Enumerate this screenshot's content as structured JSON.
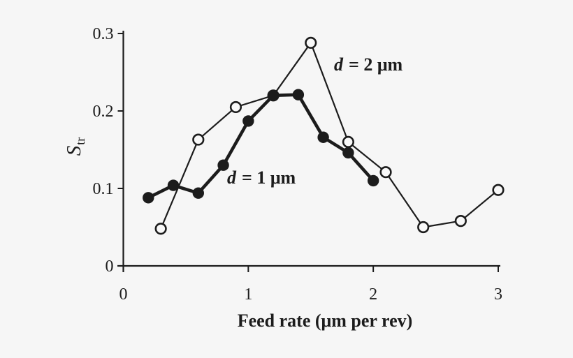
{
  "background_color": "#f6f6f6",
  "ink_color": "#1c1c1c",
  "open_marker_fill": "#f8f8f8",
  "chart_data": {
    "type": "line",
    "title": "",
    "xlabel": "Feed rate (μm per rev)",
    "ylabel": {
      "base": "S",
      "subscript": "tr"
    },
    "xlim": [
      0,
      3
    ],
    "ylim": [
      0,
      0.3
    ],
    "x_tick_values": [
      0,
      1,
      2,
      3
    ],
    "x_tick_labels": [
      "0",
      "1",
      "2",
      "3"
    ],
    "y_tick_values": [
      0,
      0.1,
      0.2,
      0.3
    ],
    "y_tick_labels": [
      "0",
      "0.1",
      "0.2",
      "0.3"
    ],
    "grid": false,
    "legend_position": "inline annotations beside curves",
    "series": [
      {
        "name": "d = 2 μm",
        "label": {
          "variable": "d",
          "rest": "= 2 μm"
        },
        "marker": "open-circle",
        "line_style": "thin",
        "x": [
          0.3,
          0.6,
          0.9,
          1.2,
          1.5,
          1.8,
          2.1,
          2.4,
          2.7,
          3.0
        ],
        "values": [
          0.048,
          0.163,
          0.205,
          0.22,
          0.288,
          0.16,
          0.121,
          0.05,
          0.058,
          0.098
        ]
      },
      {
        "name": "d = 1 μm",
        "label": {
          "variable": "d",
          "rest": "= 1 μm"
        },
        "marker": "filled-circle",
        "line_style": "thick",
        "x": [
          0.2,
          0.4,
          0.6,
          0.8,
          1.0,
          1.2,
          1.4,
          1.6,
          1.8,
          2.0
        ],
        "values": [
          0.088,
          0.104,
          0.094,
          0.13,
          0.187,
          0.22,
          0.221,
          0.166,
          0.146,
          0.11
        ]
      }
    ]
  }
}
